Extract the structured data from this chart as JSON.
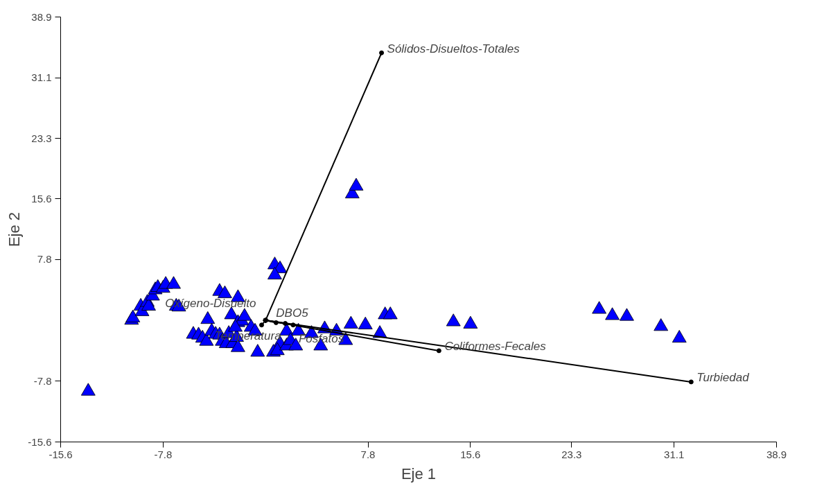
{
  "chart_data": {
    "type": "scatter",
    "xlabel": "Eje 1",
    "ylabel": "Eje 2",
    "x": [
      -13.5,
      -10.2,
      -10.1,
      -9.5,
      -9.4,
      -9.0,
      -8.9,
      -8.6,
      -8.4,
      -8.2,
      -7.8,
      -7.6,
      -7.0,
      -6.8,
      -6.6,
      -4.4,
      -5.5,
      -5.1,
      -4.8,
      -4.5,
      -4.1,
      -3.8,
      -3.5,
      -3.3,
      -3.0,
      -2.8,
      -2.6,
      -2.5,
      -2.2,
      -2.1,
      -2.1,
      -1.8,
      -1.6,
      -2.1,
      -3.5,
      -3.1,
      -1.1,
      -0.8,
      -0.6,
      -2.3,
      0.7,
      1.1,
      0.7,
      1.6,
      2.5,
      1.1,
      0.6,
      0.9,
      1.6,
      1.9,
      2.3,
      3.5,
      4.2,
      4.5,
      5.4,
      6.1,
      6.5,
      7.6,
      8.7,
      9.1,
      9.5,
      6.6,
      6.9,
      14.3,
      15.6,
      25.4,
      26.4,
      27.5,
      30.1,
      31.5
    ],
    "series": [
      {
        "color": "#0000ff",
        "marker": "triangle",
        "values": [
          -9.1,
          0.0,
          0.3,
          1.8,
          1.1,
          2.3,
          1.8,
          3.1,
          3.9,
          4.2,
          4.1,
          4.6,
          4.6,
          1.8,
          1.7,
          0.1,
          -1.8,
          -1.9,
          -2.3,
          -2.7,
          -1.4,
          -1.8,
          -1.9,
          -2.7,
          -3.0,
          -1.7,
          0.7,
          -3.0,
          -2.2,
          -3.5,
          -0.3,
          -0.1,
          0.5,
          2.9,
          3.7,
          3.4,
          -0.9,
          -1.4,
          -4.1,
          -0.9,
          7.1,
          6.6,
          5.8,
          -1.4,
          -1.4,
          -3.0,
          -4.1,
          -3.9,
          -3.3,
          -2.6,
          -3.3,
          -1.7,
          -3.3,
          -1.1,
          -1.4,
          -2.6,
          -0.5,
          -0.6,
          -1.7,
          0.7,
          0.7,
          16.2,
          17.2,
          -0.2,
          -0.5,
          1.4,
          0.6,
          0.5,
          -0.8,
          -2.3
        ]
      },
      {
        "type": "line",
        "name": "Sólidos-Disueltos-Totales",
        "color": "#000000",
        "x": [
          0,
          8.83
        ],
        "values": [
          0,
          34.3
        ]
      },
      {
        "type": "line",
        "name": "Turbiedad",
        "color": "#000000",
        "x": [
          0,
          32.4
        ],
        "values": [
          0,
          -7.9
        ]
      },
      {
        "type": "line",
        "name": "Coliformes-Fecales",
        "color": "#000000",
        "x": [
          0,
          13.2
        ],
        "values": [
          0,
          -3.9
        ]
      },
      {
        "type": "line",
        "name": "Oxígeno-Disuelto",
        "color": "#000000",
        "x": [
          0,
          -0.3
        ],
        "values": [
          0,
          -0.6
        ]
      },
      {
        "type": "line",
        "name": "DBO5",
        "color": "#000000",
        "x": [
          0,
          0.8
        ],
        "values": [
          0,
          -0.3
        ]
      },
      {
        "type": "line",
        "name": "Temperatura",
        "color": "#000000",
        "x": [
          0,
          1.5
        ],
        "values": [
          0,
          -0.4
        ]
      },
      {
        "type": "line",
        "name": "Fosfatos",
        "color": "#000000",
        "x": [
          0,
          2.1
        ],
        "values": [
          0,
          -0.6
        ]
      }
    ],
    "marker": "circle",
    "xlim": [
      -15.6,
      38.9
    ],
    "ylim": [
      -15.6,
      38.9
    ],
    "xticks": [
      -15.6,
      -7.8,
      7.8,
      15.6,
      23.3,
      31.1,
      38.9
    ],
    "yticks": [
      -15.6,
      -7.8,
      7.8,
      15.6,
      23.3,
      31.1,
      38.9
    ],
    "grid": false
  }
}
